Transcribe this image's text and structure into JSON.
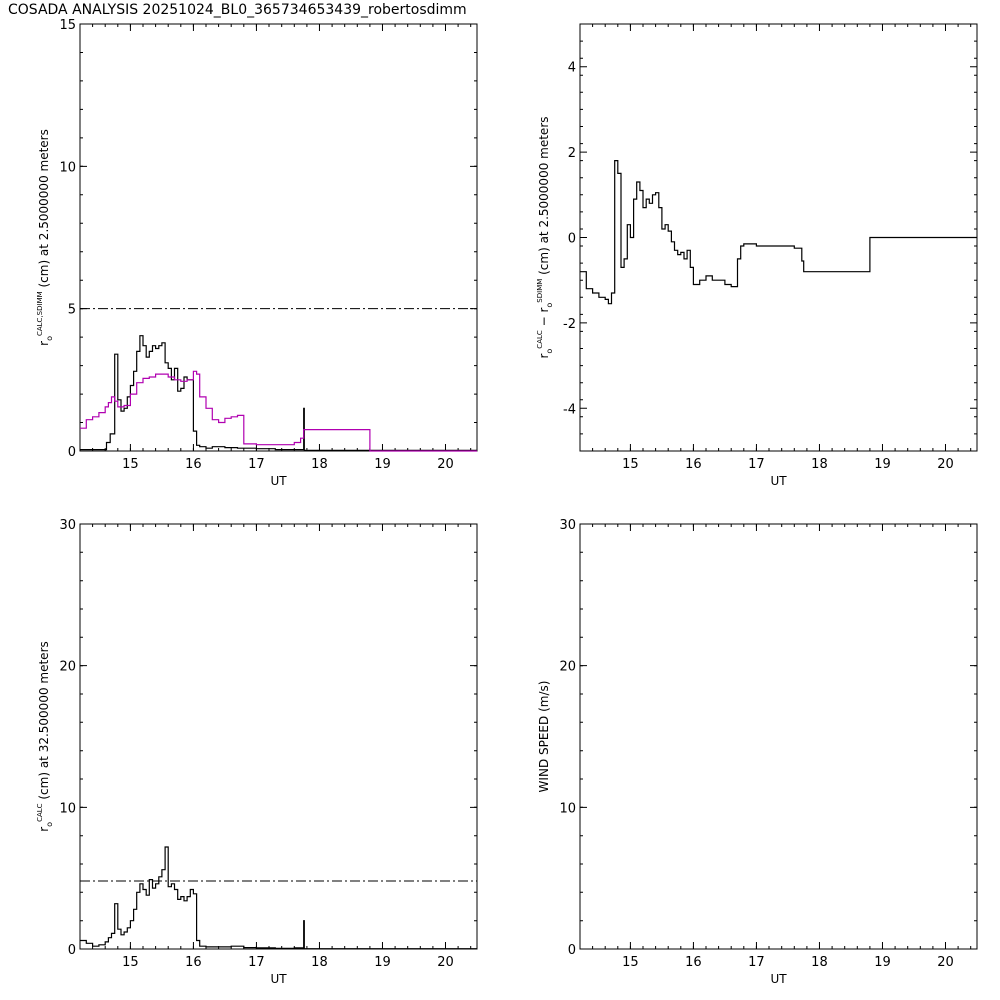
{
  "title": "COSADA ANALYSIS 20251024_BL0_365734653439_robertosdimm",
  "colors": {
    "calc": "#000000",
    "sdimm": "#b000b0",
    "ref_line": "#000000"
  },
  "chart_data": [
    {
      "type": "line",
      "xlabel": "UT",
      "ylabel": "r_o^{CALC,SDIMM} (cm) at 2.5000000 meters",
      "ylabel_parts": {
        "r": "r",
        "sub": "o",
        "sup": "CALC,SDIMM",
        "rest": " (cm)  at  2.5000000 meters"
      },
      "xlim": [
        14.2,
        20.5
      ],
      "ylim": [
        0,
        15
      ],
      "xticks": [
        15,
        16,
        17,
        18,
        19,
        20
      ],
      "yticks": [
        0,
        5,
        10,
        15
      ],
      "reference_line": 5,
      "series": [
        {
          "key": "calc",
          "step": true,
          "x": [
            14.2,
            14.5,
            14.62,
            14.68,
            14.75,
            14.8,
            14.85,
            14.9,
            14.95,
            15.0,
            15.05,
            15.1,
            15.15,
            15.2,
            15.25,
            15.3,
            15.35,
            15.4,
            15.45,
            15.5,
            15.55,
            15.6,
            15.65,
            15.7,
            15.75,
            15.8,
            15.85,
            15.9,
            15.95,
            16.0,
            16.05,
            16.1,
            16.2,
            16.3,
            16.5,
            16.7,
            17.0,
            17.3,
            17.6,
            17.75,
            17.76
          ],
          "y": [
            0.05,
            0.05,
            0.3,
            0.6,
            3.4,
            1.8,
            1.4,
            1.5,
            1.9,
            2.3,
            2.8,
            3.5,
            4.05,
            3.7,
            3.3,
            3.5,
            3.7,
            3.6,
            3.7,
            3.8,
            3.1,
            2.9,
            2.5,
            2.9,
            2.1,
            2.2,
            2.6,
            2.5,
            2.5,
            0.7,
            0.2,
            0.15,
            0.1,
            0.15,
            0.12,
            0.1,
            0.08,
            0.05,
            0.05,
            1.5,
            0.02
          ]
        },
        {
          "key": "sdimm",
          "step": true,
          "x": [
            14.2,
            14.3,
            14.4,
            14.5,
            14.6,
            14.65,
            14.7,
            14.75,
            14.8,
            14.9,
            15.0,
            15.1,
            15.2,
            15.3,
            15.4,
            15.5,
            15.6,
            15.7,
            15.8,
            15.9,
            16.0,
            16.05,
            16.1,
            16.2,
            16.3,
            16.4,
            16.5,
            16.6,
            16.7,
            16.8,
            17.0,
            17.3,
            17.6,
            17.7,
            17.75,
            18.8,
            20.5
          ],
          "y": [
            0.8,
            1.1,
            1.2,
            1.35,
            1.55,
            1.7,
            1.9,
            1.75,
            1.55,
            1.6,
            2.0,
            2.4,
            2.55,
            2.6,
            2.7,
            2.7,
            2.6,
            2.5,
            2.45,
            2.5,
            2.8,
            2.7,
            1.9,
            1.5,
            1.1,
            1.0,
            1.15,
            1.2,
            1.25,
            0.25,
            0.22,
            0.22,
            0.3,
            0.45,
            0.75,
            0.0,
            0.0
          ]
        }
      ]
    },
    {
      "type": "line",
      "xlabel": "UT",
      "ylabel": "r_o^{CALC} - r_o^{SDIMM} (cm) at 2.5000000 meters",
      "ylabel_parts": {
        "r1": "r",
        "sub1": "o",
        "sup1": "CALC",
        "minus": "  −  ",
        "r2": "r",
        "sub2": "o",
        "sup2": "SDIMM",
        "rest": " (cm) at 2.5000000 meters"
      },
      "xlim": [
        14.2,
        20.5
      ],
      "ylim": [
        -5,
        5
      ],
      "xticks": [
        15,
        16,
        17,
        18,
        19,
        20
      ],
      "yticks": [
        -4,
        -2,
        0,
        2,
        4
      ],
      "series": [
        {
          "key": "diff",
          "step": true,
          "x": [
            14.2,
            14.3,
            14.4,
            14.5,
            14.6,
            14.65,
            14.7,
            14.75,
            14.8,
            14.85,
            14.9,
            14.95,
            15.0,
            15.05,
            15.1,
            15.15,
            15.2,
            15.25,
            15.3,
            15.35,
            15.4,
            15.45,
            15.5,
            15.55,
            15.6,
            15.65,
            15.7,
            15.75,
            15.8,
            15.85,
            15.9,
            15.95,
            16.0,
            16.1,
            16.2,
            16.3,
            16.5,
            16.6,
            16.7,
            16.75,
            16.8,
            17.0,
            17.3,
            17.6,
            17.72,
            17.75,
            18.8,
            20.5
          ],
          "y": [
            -0.8,
            -1.2,
            -1.3,
            -1.4,
            -1.45,
            -1.55,
            -1.3,
            1.8,
            1.5,
            -0.7,
            -0.5,
            0.3,
            0.0,
            0.9,
            1.3,
            1.1,
            0.7,
            0.9,
            0.8,
            1.0,
            1.05,
            0.7,
            0.2,
            0.3,
            0.15,
            -0.1,
            -0.3,
            -0.4,
            -0.35,
            -0.5,
            -0.3,
            -0.7,
            -1.1,
            -1.0,
            -0.9,
            -1.0,
            -1.1,
            -1.15,
            -0.5,
            -0.2,
            -0.15,
            -0.2,
            -0.2,
            -0.25,
            -0.55,
            -0.8,
            0.0,
            0.0
          ]
        }
      ]
    },
    {
      "type": "line",
      "xlabel": "UT",
      "ylabel": "r_o^{CALC} (cm) at 32.500000 meters",
      "ylabel_parts": {
        "r": "r",
        "sub": "o",
        "sup": "CALC",
        "rest": " (cm) at 32.500000 meters"
      },
      "xlim": [
        14.2,
        20.5
      ],
      "ylim": [
        0,
        30
      ],
      "xticks": [
        15,
        16,
        17,
        18,
        19,
        20
      ],
      "yticks": [
        0,
        10,
        20,
        30
      ],
      "reference_line": 4.8,
      "series": [
        {
          "key": "calc32",
          "step": true,
          "x": [
            14.2,
            14.3,
            14.4,
            14.5,
            14.6,
            14.65,
            14.7,
            14.75,
            14.8,
            14.85,
            14.9,
            14.95,
            15.0,
            15.05,
            15.1,
            15.15,
            15.2,
            15.25,
            15.3,
            15.35,
            15.4,
            15.45,
            15.5,
            15.55,
            15.6,
            15.65,
            15.7,
            15.75,
            15.8,
            15.85,
            15.9,
            15.95,
            16.0,
            16.05,
            16.1,
            16.2,
            16.4,
            16.6,
            16.8,
            17.0,
            17.3,
            17.6,
            17.75,
            17.76
          ],
          "y": [
            0.6,
            0.4,
            0.2,
            0.3,
            0.5,
            0.8,
            1.1,
            3.2,
            1.4,
            1.0,
            1.2,
            1.5,
            2.0,
            2.8,
            4.0,
            4.6,
            4.2,
            3.8,
            4.9,
            4.3,
            4.6,
            5.1,
            5.6,
            7.2,
            4.4,
            4.6,
            4.2,
            3.5,
            3.7,
            3.4,
            3.7,
            4.2,
            3.9,
            0.6,
            0.2,
            0.15,
            0.15,
            0.2,
            0.1,
            0.08,
            0.05,
            0.08,
            2.0,
            0.02
          ]
        }
      ]
    },
    {
      "type": "line",
      "xlabel": "UT",
      "ylabel": "WIND SPEED (m/s)",
      "xlim": [
        14.2,
        20.5
      ],
      "ylim": [
        0,
        30
      ],
      "xticks": [
        15,
        16,
        17,
        18,
        19,
        20
      ],
      "yticks": [
        0,
        10,
        20,
        30
      ],
      "series": []
    }
  ]
}
